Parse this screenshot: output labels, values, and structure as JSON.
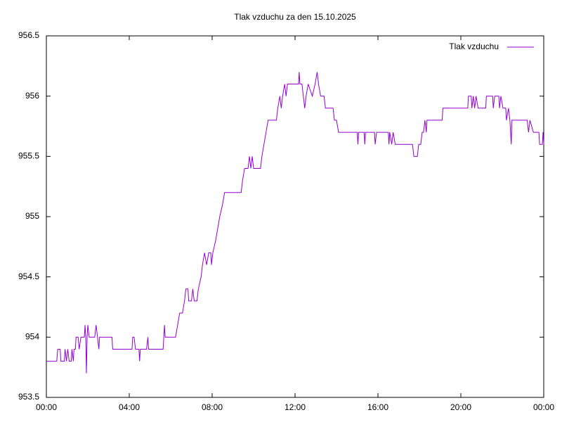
{
  "chart_data": {
    "type": "line",
    "title": "Tlak vzduchu za den 15.10.2025",
    "x": [
      0,
      30,
      33,
      40,
      42,
      52,
      54,
      58,
      62,
      66,
      72,
      74,
      78,
      80,
      84,
      86,
      92,
      95,
      100,
      110,
      112,
      114,
      116,
      118,
      120,
      124,
      140,
      144,
      148,
      152,
      154,
      190,
      192,
      248,
      250,
      254,
      258,
      268,
      270,
      272,
      290,
      294,
      296,
      338,
      340,
      342,
      344,
      374,
      380,
      386,
      394,
      400,
      404,
      410,
      412,
      420,
      424,
      428,
      436,
      440,
      448,
      452,
      458,
      464,
      470,
      476,
      478,
      482,
      490,
      496,
      502,
      510,
      516,
      564,
      568,
      574,
      584,
      588,
      592,
      596,
      600,
      620,
      624,
      630,
      636,
      642,
      666,
      670,
      676,
      680,
      684,
      690,
      694,
      698,
      730,
      732,
      734,
      740,
      744,
      748,
      752,
      758,
      770,
      778,
      784,
      788,
      794,
      804,
      808,
      830,
      834,
      840,
      846,
      900,
      902,
      904,
      920,
      922,
      924,
      950,
      952,
      956,
      990,
      992,
      994,
      1000,
      1004,
      1010,
      1014,
      1060,
      1064,
      1074,
      1078,
      1084,
      1088,
      1092,
      1096,
      1100,
      1102,
      1146,
      1148,
      1220,
      1222,
      1230,
      1232,
      1236,
      1240,
      1244,
      1250,
      1272,
      1274,
      1292,
      1294,
      1298,
      1310,
      1312,
      1316,
      1322,
      1330,
      1332,
      1338,
      1342,
      1346,
      1348,
      1392,
      1396,
      1400,
      1410,
      1426,
      1428,
      1436,
      1438,
      1440
    ],
    "series": [
      {
        "name": "Tlak vzduchu",
        "color": "#9400d3",
        "values": [
          953.8,
          953.8,
          953.9,
          953.9,
          953.8,
          953.8,
          953.9,
          953.8,
          953.9,
          953.8,
          953.8,
          953.9,
          953.8,
          953.9,
          953.9,
          954.0,
          954.0,
          953.9,
          954.0,
          954.0,
          954.1,
          954.0,
          953.7,
          954.0,
          954.1,
          954.0,
          954.0,
          954.1,
          954.0,
          953.9,
          954.0,
          954.0,
          953.9,
          953.9,
          954.0,
          954.0,
          953.9,
          953.9,
          953.8,
          953.9,
          953.9,
          954.0,
          953.9,
          953.9,
          954.0,
          954.1,
          954.0,
          954.0,
          954.1,
          954.2,
          954.2,
          954.3,
          954.4,
          954.4,
          954.3,
          954.3,
          954.4,
          954.3,
          954.3,
          954.4,
          954.5,
          954.6,
          954.7,
          954.6,
          954.7,
          954.7,
          954.6,
          954.7,
          954.8,
          954.9,
          955.0,
          955.1,
          955.2,
          955.2,
          955.3,
          955.4,
          955.4,
          955.5,
          955.4,
          955.5,
          955.4,
          955.4,
          955.5,
          955.6,
          955.7,
          955.8,
          955.8,
          955.9,
          956.0,
          955.9,
          956.0,
          956.1,
          956.0,
          956.1,
          956.1,
          956.2,
          956.1,
          956.1,
          956.0,
          955.9,
          956.0,
          956.1,
          956.0,
          956.1,
          956.2,
          956.1,
          956.0,
          956.0,
          955.9,
          955.9,
          955.8,
          955.8,
          955.7,
          955.7,
          955.6,
          955.7,
          955.7,
          955.6,
          955.7,
          955.7,
          955.6,
          955.7,
          955.7,
          955.6,
          955.7,
          955.6,
          955.7,
          955.6,
          955.6,
          955.6,
          955.5,
          955.5,
          955.6,
          955.6,
          955.7,
          955.7,
          955.8,
          955.7,
          955.8,
          955.8,
          955.9,
          955.9,
          956.0,
          956.0,
          955.9,
          956.0,
          955.9,
          956.0,
          955.9,
          955.9,
          956.0,
          956.0,
          955.9,
          956.0,
          956.0,
          955.9,
          956.0,
          955.9,
          955.9,
          955.8,
          955.9,
          955.8,
          955.6,
          955.8,
          955.8,
          955.7,
          955.8,
          955.7,
          955.7,
          955.6,
          955.6,
          955.7,
          955.6
        ]
      }
    ],
    "xlim": [
      0,
      1440
    ],
    "xticks": [
      {
        "value": 0,
        "label": "00:00"
      },
      {
        "value": 240,
        "label": "04:00"
      },
      {
        "value": 480,
        "label": "08:00"
      },
      {
        "value": 720,
        "label": "12:00"
      },
      {
        "value": 960,
        "label": "16:00"
      },
      {
        "value": 1200,
        "label": "20:00"
      },
      {
        "value": 1440,
        "label": "00:00"
      }
    ],
    "ylim": [
      953.5,
      956.5
    ],
    "yticks": [
      953.5,
      954,
      954.5,
      955,
      955.5,
      956,
      956.5
    ],
    "legend": "top right"
  }
}
